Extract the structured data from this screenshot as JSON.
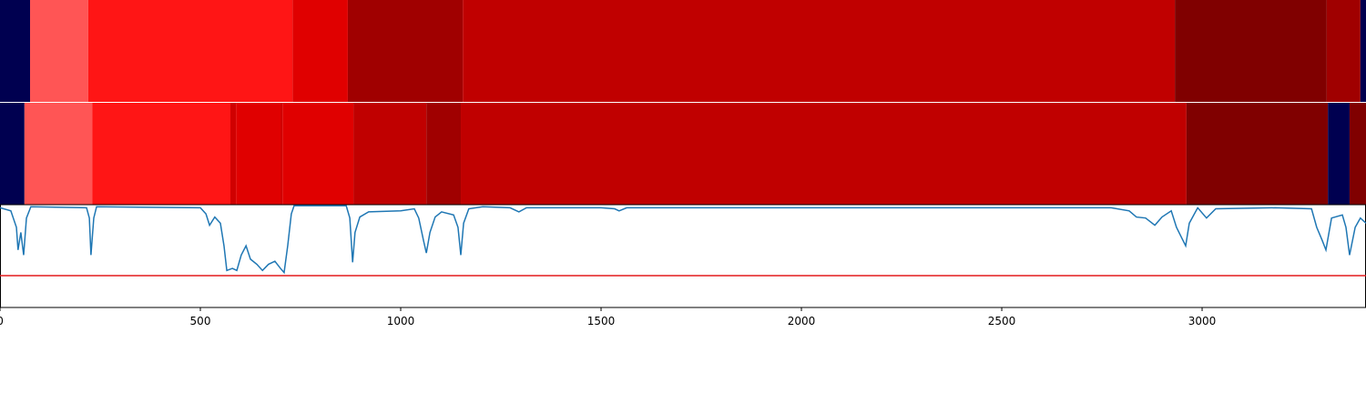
{
  "chart_data": {
    "type": "segments",
    "xlim": [
      0,
      3409
    ],
    "xticks": [
      0,
      500,
      1000,
      1500,
      2000,
      2500,
      3000
    ],
    "tracks": [
      {
        "boundaries": [
          0,
          75,
          220,
          730,
          868,
          1155,
          2932,
          3311,
          3395,
          3409
        ],
        "colors": [
          "#000050",
          "#ff5555",
          "#ff1515",
          "#e00000",
          "#a00000",
          "#c00000",
          "#800000",
          "#a00000",
          "#000050"
        ]
      },
      {
        "boundaries": [
          0,
          61,
          230,
          575,
          589,
          700,
          705,
          882,
          1064,
          1150,
          2961,
          3314,
          3368,
          3409
        ],
        "colors": [
          "#000050",
          "#ff5555",
          "#ff1515",
          "#d00000",
          "#e00000",
          "#d00000",
          "#e00000",
          "#c00000",
          "#a00000",
          "#c00000",
          "#800000",
          "#000050",
          "#800000"
        ]
      }
    ],
    "line": {
      "color": "#1f77b4",
      "ylim": [
        0,
        1
      ],
      "threshold": 0.31,
      "threshold_color": "#e31a1c",
      "x": [
        0,
        27,
        41,
        45,
        52,
        59,
        66,
        77,
        216,
        223,
        227,
        234,
        241,
        500,
        514,
        523,
        536,
        550,
        559,
        566,
        580,
        591,
        602,
        614,
        625,
        641,
        655,
        670,
        686,
        700,
        709,
        718,
        727,
        734,
        864,
        873,
        880,
        886,
        898,
        920,
        1000,
        1034,
        1045,
        1057,
        1064,
        1073,
        1086,
        1102,
        1132,
        1143,
        1150,
        1157,
        1170,
        1205,
        1273,
        1295,
        1314,
        1500,
        1534,
        1545,
        1564,
        2773,
        2818,
        2836,
        2859,
        2882,
        2900,
        2923,
        2936,
        2950,
        2959,
        2968,
        2989,
        3011,
        3034,
        3182,
        3273,
        3286,
        3300,
        3309,
        3323,
        3350,
        3359,
        3368,
        3382,
        3395,
        3409
      ],
      "values": [
        0.97,
        0.94,
        0.78,
        0.56,
        0.73,
        0.51,
        0.87,
        0.98,
        0.97,
        0.87,
        0.51,
        0.87,
        0.98,
        0.97,
        0.91,
        0.8,
        0.88,
        0.82,
        0.6,
        0.36,
        0.38,
        0.36,
        0.51,
        0.6,
        0.47,
        0.42,
        0.36,
        0.42,
        0.45,
        0.38,
        0.34,
        0.6,
        0.91,
        0.99,
        0.99,
        0.87,
        0.44,
        0.73,
        0.88,
        0.93,
        0.94,
        0.96,
        0.87,
        0.65,
        0.53,
        0.73,
        0.88,
        0.93,
        0.9,
        0.78,
        0.51,
        0.82,
        0.96,
        0.98,
        0.97,
        0.93,
        0.97,
        0.97,
        0.96,
        0.94,
        0.97,
        0.97,
        0.94,
        0.88,
        0.87,
        0.8,
        0.88,
        0.94,
        0.78,
        0.67,
        0.6,
        0.82,
        0.97,
        0.87,
        0.96,
        0.97,
        0.96,
        0.78,
        0.65,
        0.56,
        0.87,
        0.9,
        0.78,
        0.51,
        0.78,
        0.87,
        0.82
      ]
    }
  }
}
